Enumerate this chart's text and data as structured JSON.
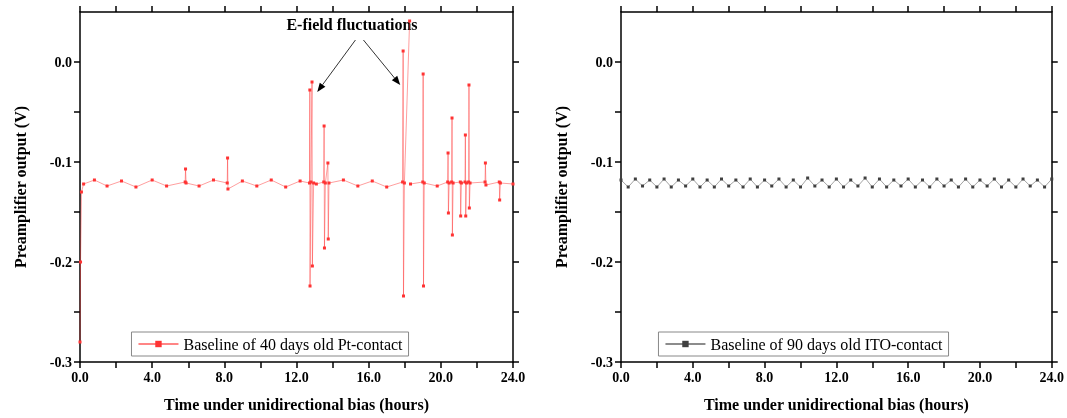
{
  "chart_data": [
    {
      "type": "line",
      "xlabel": "Time under unidirectional bias (hours)",
      "ylabel": "Preamplifier output (V)",
      "annotations": [
        "E-field fluctuations"
      ],
      "xlim": [
        0,
        24
      ],
      "ylim": [
        -0.3,
        0.05
      ],
      "xticks": [
        {
          "value": 0,
          "label": "0.0"
        },
        {
          "value": 2,
          "label": null
        },
        {
          "value": 4,
          "label": "4.0"
        },
        {
          "value": 6,
          "label": null
        },
        {
          "value": 8,
          "label": "8.0"
        },
        {
          "value": 10,
          "label": null
        },
        {
          "value": 12,
          "label": "12.0"
        },
        {
          "value": 14,
          "label": null
        },
        {
          "value": 16,
          "label": "16.0"
        },
        {
          "value": 18,
          "label": null
        },
        {
          "value": 20,
          "label": "20.0"
        },
        {
          "value": 22,
          "label": null
        },
        {
          "value": 24,
          "label": "24.0"
        }
      ],
      "yticks": [
        -0.3,
        {
          "value": -0.25,
          "label": null
        },
        -0.2,
        {
          "value": -0.15,
          "label": null
        },
        -0.1,
        {
          "value": -0.05,
          "label": null
        },
        {
          "value": 0,
          "label": "0.0"
        }
      ],
      "legend": "bottom",
      "marker": "square",
      "line_style": "solid",
      "series": [
        {
          "name": "Baseline of 40 days old Pt-contact",
          "color": "#ff3333",
          "x": [
            0,
            0.03,
            0.08,
            0.2,
            0.8,
            1.5,
            2.3,
            3.1,
            4.0,
            4.8,
            5.83,
            5.85,
            5.88,
            6.6,
            7.4,
            8.16,
            8.18,
            8.2,
            9.0,
            9.8,
            10.6,
            11.4,
            12.2,
            12.72,
            12.74,
            12.75,
            12.8,
            12.86,
            12.88,
            12.95,
            13.05,
            13.06,
            13.1,
            13.51,
            13.53,
            13.55,
            13.6,
            13.74,
            13.76,
            13.8,
            14.6,
            15.4,
            16.2,
            17.0,
            17.88,
            17.91,
            17.93,
            17.98,
            18.27,
            18.28,
            18.29,
            18.32,
            19.0,
            19.02,
            19.04,
            19.08,
            19.8,
            20.38,
            20.4,
            20.42,
            20.46,
            20.6,
            20.62,
            20.64,
            20.68,
            21.08,
            21.1,
            21.14,
            21.34,
            21.36,
            21.38,
            21.42,
            21.54,
            21.56,
            21.58,
            21.62,
            22.45,
            22.47,
            22.5,
            23.24,
            23.26,
            23.3,
            24.0
          ],
          "values": [
            -0.28,
            -0.2,
            -0.13,
            -0.122,
            -0.118,
            -0.124,
            -0.119,
            -0.125,
            -0.118,
            -0.124,
            -0.12,
            -0.107,
            -0.121,
            -0.124,
            -0.118,
            -0.121,
            -0.096,
            -0.127,
            -0.119,
            -0.124,
            -0.118,
            -0.125,
            -0.119,
            -0.121,
            -0.028,
            -0.224,
            -0.12,
            -0.02,
            -0.204,
            -0.121,
            null,
            null,
            -0.122,
            -0.12,
            -0.064,
            -0.186,
            -0.121,
            -0.101,
            -0.177,
            -0.121,
            -0.118,
            -0.124,
            -0.119,
            -0.125,
            -0.12,
            0.011,
            -0.234,
            -0.121,
            0.041,
            null,
            null,
            -0.122,
            -0.12,
            -0.012,
            -0.224,
            -0.121,
            -0.124,
            -0.12,
            -0.091,
            -0.151,
            -0.121,
            -0.12,
            -0.056,
            -0.173,
            -0.121,
            -0.12,
            -0.154,
            -0.121,
            -0.12,
            -0.073,
            -0.154,
            -0.121,
            -0.12,
            -0.023,
            -0.146,
            -0.121,
            -0.12,
            -0.101,
            -0.123,
            -0.12,
            -0.138,
            -0.121,
            -0.122
          ]
        }
      ]
    },
    {
      "type": "line",
      "xlabel": "Time under unidirectional bias (hours)",
      "ylabel": "Preamplifier output (V)",
      "xlim": [
        0,
        24
      ],
      "ylim": [
        -0.3,
        0.05
      ],
      "xticks": [
        {
          "value": 0,
          "label": "0.0"
        },
        {
          "value": 2,
          "label": null
        },
        {
          "value": 4,
          "label": "4.0"
        },
        {
          "value": 6,
          "label": null
        },
        {
          "value": 8,
          "label": "8.0"
        },
        {
          "value": 10,
          "label": null
        },
        {
          "value": 12,
          "label": "12.0"
        },
        {
          "value": 14,
          "label": null
        },
        {
          "value": 16,
          "label": "16.0"
        },
        {
          "value": 18,
          "label": null
        },
        {
          "value": 20,
          "label": "20.0"
        },
        {
          "value": 22,
          "label": null
        },
        {
          "value": 24,
          "label": "24.0"
        }
      ],
      "yticks": [
        -0.3,
        {
          "value": -0.25,
          "label": null
        },
        -0.2,
        {
          "value": -0.15,
          "label": null
        },
        -0.1,
        {
          "value": -0.05,
          "label": null
        },
        {
          "value": 0,
          "label": "0.0"
        }
      ],
      "legend": "bottom",
      "marker": "square",
      "line_style": "solid",
      "series": [
        {
          "name": "Baseline of 90 days old ITO-contact",
          "color": "#404040",
          "x": [
            0,
            0.4,
            0.8,
            1.2,
            1.6,
            2.0,
            2.4,
            2.8,
            3.2,
            3.6,
            4.0,
            4.4,
            4.8,
            5.2,
            5.6,
            6.0,
            6.4,
            6.8,
            7.2,
            7.6,
            8.0,
            8.4,
            8.8,
            9.2,
            9.6,
            10.0,
            10.4,
            10.8,
            11.2,
            11.6,
            12.0,
            12.4,
            12.8,
            13.2,
            13.6,
            14.0,
            14.4,
            14.8,
            15.2,
            15.6,
            16.0,
            16.4,
            16.8,
            17.2,
            17.6,
            18.0,
            18.4,
            18.8,
            19.2,
            19.6,
            20.0,
            20.4,
            20.8,
            21.2,
            21.6,
            22.0,
            22.4,
            22.8,
            23.2,
            23.6,
            24.0
          ],
          "values": [
            -0.118,
            -0.125,
            -0.117,
            -0.124,
            -0.118,
            -0.125,
            -0.117,
            -0.125,
            -0.118,
            -0.124,
            -0.117,
            -0.125,
            -0.118,
            -0.125,
            -0.117,
            -0.124,
            -0.118,
            -0.125,
            -0.117,
            -0.125,
            -0.118,
            -0.124,
            -0.117,
            -0.125,
            -0.118,
            -0.125,
            -0.116,
            -0.124,
            -0.118,
            -0.125,
            -0.117,
            -0.125,
            -0.118,
            -0.124,
            -0.116,
            -0.125,
            -0.117,
            -0.125,
            -0.118,
            -0.124,
            -0.117,
            -0.125,
            -0.118,
            -0.125,
            -0.117,
            -0.124,
            -0.118,
            -0.125,
            -0.117,
            -0.125,
            -0.118,
            -0.124,
            -0.117,
            -0.125,
            -0.118,
            -0.125,
            -0.117,
            -0.124,
            -0.118,
            -0.125,
            -0.117
          ]
        }
      ]
    }
  ]
}
